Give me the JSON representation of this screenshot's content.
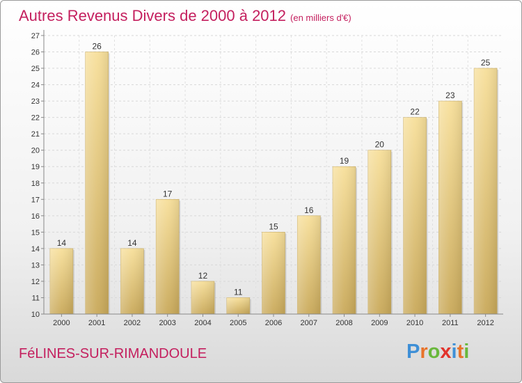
{
  "chart_data": {
    "type": "bar",
    "title": "Autres Revenus Divers de 2000 à 2012",
    "subtitle": "(en milliers d'€)",
    "categories": [
      "2000",
      "2001",
      "2002",
      "2003",
      "2004",
      "2005",
      "2006",
      "2007",
      "2008",
      "2009",
      "2010",
      "2011",
      "2012"
    ],
    "values": [
      14,
      26,
      14,
      17,
      12,
      11,
      15,
      16,
      19,
      20,
      22,
      23,
      25
    ],
    "ylim": [
      10,
      27
    ],
    "yticks": [
      10,
      11,
      12,
      13,
      14,
      15,
      16,
      17,
      18,
      19,
      20,
      21,
      22,
      23,
      24,
      25,
      26,
      27
    ],
    "grid": true,
    "bar_color": "#e3c77e",
    "title_color": "#c41f5e"
  },
  "footer": {
    "location": "FéLINES-SUR-RIMANDOULE",
    "brand_letters": [
      "P",
      "r",
      "o",
      "x",
      "i",
      "t",
      "i"
    ],
    "brand_colors": [
      "#3e8fd6",
      "#e8732a",
      "#69b83c",
      "#e2332c",
      "#3e8fd6",
      "#e8732a",
      "#69b83c"
    ]
  }
}
